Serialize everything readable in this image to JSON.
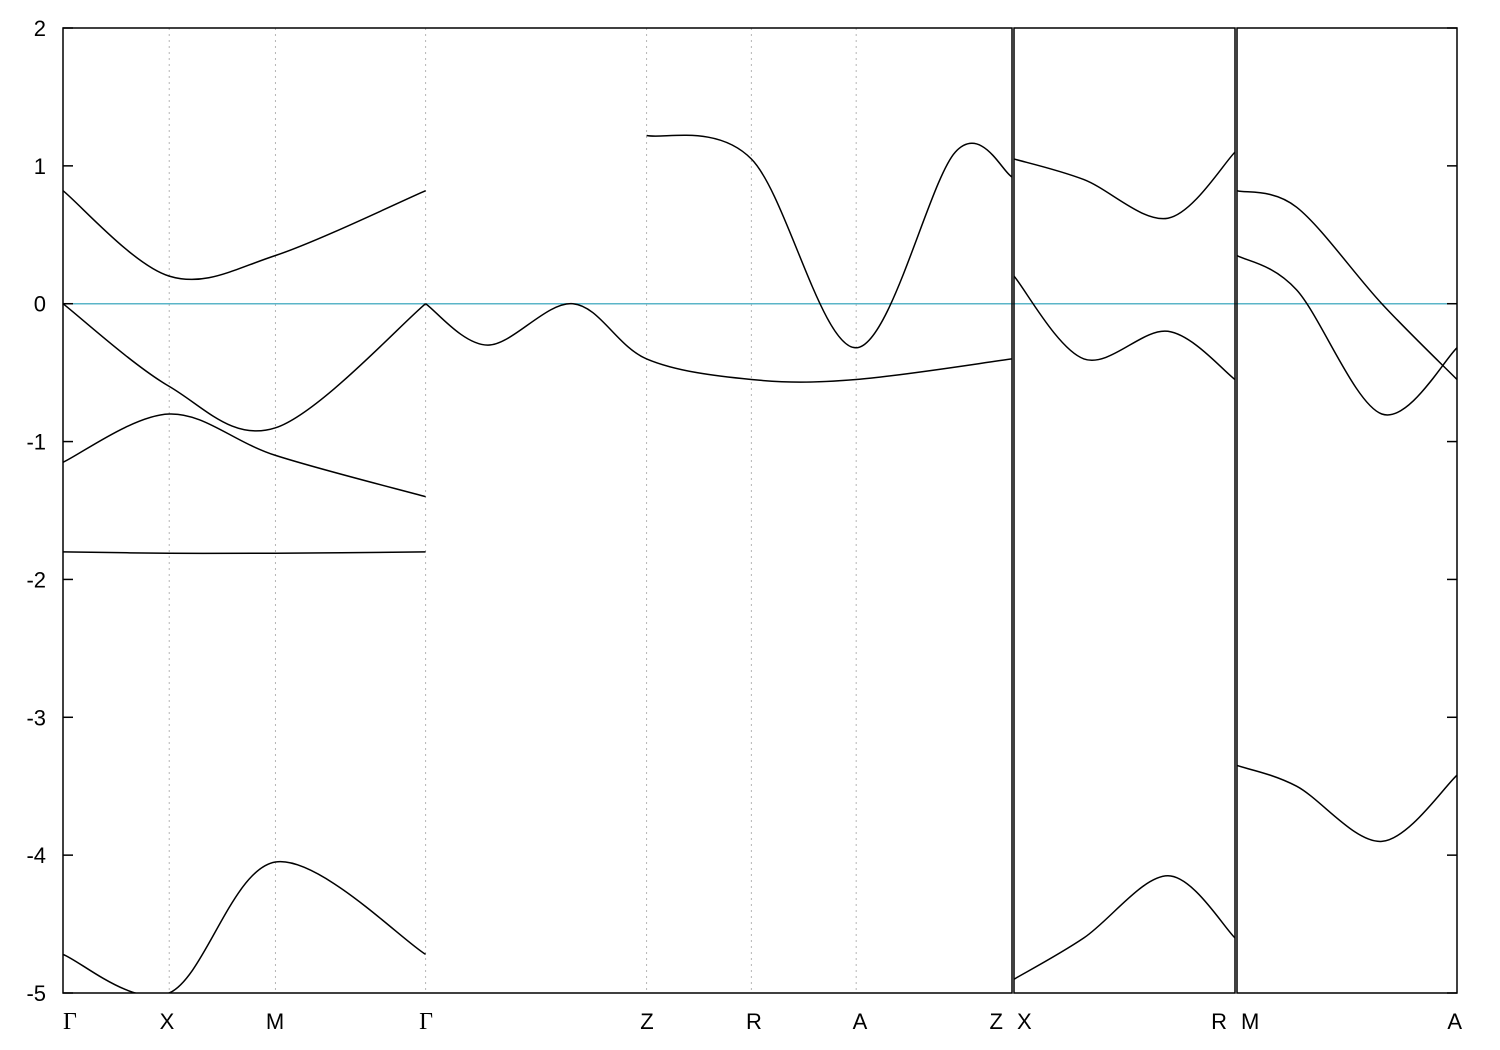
{
  "chart_data": {
    "type": "line",
    "title": "",
    "xlabel": "",
    "ylabel": "",
    "ylim": [
      -5,
      2
    ],
    "y_ticks": [
      "2",
      "1",
      "0",
      "-1",
      "-2",
      "-3",
      "-4",
      "-5"
    ],
    "fermi_level": 0,
    "fermi_color": "#5bb5c8",
    "band_color": "#000000",
    "grid": "vertical dotted at high-symmetry points",
    "segments": [
      {
        "path": "Γ-X-M-Γ-Z-R-A-Z",
        "k_labels": [
          "Γ",
          "X",
          "M",
          "Γ",
          "Z",
          "R",
          "A",
          "Z"
        ],
        "k_positions": [
          0,
          0.75,
          1.5,
          2.56,
          4.12,
          4.86,
          5.6,
          6.7
        ]
      },
      {
        "path": "X-R",
        "k_labels": [
          "X",
          "R"
        ],
        "k_positions": [
          6.7,
          8.28
        ]
      },
      {
        "path": "M-A",
        "k_labels": [
          "M",
          "A"
        ],
        "k_positions": [
          8.28,
          9.83
        ]
      }
    ],
    "series": [
      {
        "segment": 0,
        "x": [
          0,
          0.75,
          1.5,
          2.56
        ],
        "y": [
          0,
          -0.6,
          -0.9,
          0
        ]
      },
      {
        "segment": 0,
        "x": [
          0,
          0.75,
          1.5,
          2.56
        ],
        "y": [
          0.82,
          0.2,
          0.35,
          0.82
        ]
      },
      {
        "segment": 0,
        "x": [
          0,
          0.75,
          1.5,
          2.56
        ],
        "y": [
          -1.15,
          -0.8,
          -1.1,
          -1.4
        ]
      },
      {
        "segment": 0,
        "x": [
          0,
          0.75,
          1.5,
          2.56
        ],
        "y": [
          -1.8,
          -1.81,
          -1.81,
          -1.8
        ]
      },
      {
        "segment": 0,
        "x": [
          0,
          0.75,
          1.5,
          2.56
        ],
        "y": [
          -4.72,
          -5.0,
          -4.05,
          -4.72
        ]
      },
      {
        "segment": 0,
        "x": [
          2.56,
          3.0,
          3.6,
          4.12,
          4.86,
          5.6,
          6.7
        ],
        "y": [
          0.0,
          -0.3,
          0.0,
          -0.4,
          -0.55,
          -0.55,
          -0.4
        ]
      },
      {
        "segment": 0,
        "x": [
          4.12,
          4.86,
          5.6,
          6.3,
          6.7
        ],
        "y": [
          1.22,
          1.05,
          -0.32,
          1.1,
          0.92
        ]
      },
      {
        "segment": 1,
        "x": [
          6.7,
          7.2,
          7.8,
          8.28
        ],
        "y": [
          0.2,
          -0.4,
          -0.2,
          -0.55
        ]
      },
      {
        "segment": 1,
        "x": [
          6.7,
          7.2,
          7.8,
          8.28
        ],
        "y": [
          1.05,
          0.9,
          0.62,
          1.1
        ]
      },
      {
        "segment": 1,
        "x": [
          6.7,
          7.2,
          7.8,
          8.28
        ],
        "y": [
          -4.9,
          -4.6,
          -4.15,
          -4.6
        ]
      },
      {
        "segment": 2,
        "x": [
          8.28,
          8.7,
          9.3,
          9.83
        ],
        "y": [
          0.82,
          0.7,
          0.0,
          -0.55
        ]
      },
      {
        "segment": 2,
        "x": [
          8.28,
          8.7,
          9.3,
          9.83
        ],
        "y": [
          0.35,
          0.1,
          -0.8,
          -0.32
        ]
      },
      {
        "segment": 2,
        "x": [
          8.28,
          8.7,
          9.3,
          9.83
        ],
        "y": [
          -3.35,
          -3.5,
          -3.9,
          -3.42
        ]
      }
    ]
  }
}
